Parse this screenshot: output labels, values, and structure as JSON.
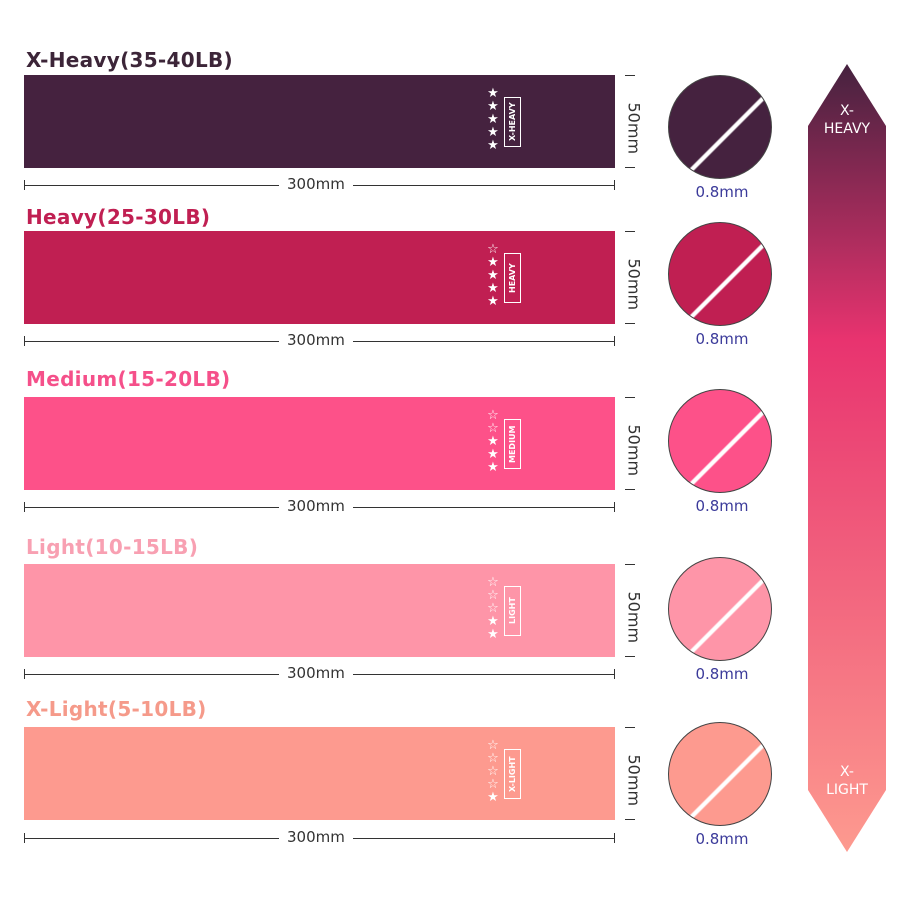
{
  "bands": [
    {
      "label": "X-Heavy(35-40LB)",
      "tag": "X-HEAVY",
      "stars_filled": 5,
      "stars_total": 5,
      "color": "#45223f",
      "label_color": "#3c2538",
      "width": "300mm",
      "height": "50mm",
      "thickness": "0.8mm"
    },
    {
      "label": "Heavy(25-30LB)",
      "tag": "HEAVY",
      "stars_filled": 4,
      "stars_total": 5,
      "color": "#c01f52",
      "label_color": "#c01f52",
      "width": "300mm",
      "height": "50mm",
      "thickness": "0.8mm"
    },
    {
      "label": "Medium(15-20LB)",
      "tag": "MEDIUM",
      "stars_filled": 3,
      "stars_total": 5,
      "color": "#fd5189",
      "label_color": "#f5508a",
      "width": "300mm",
      "height": "50mm",
      "thickness": "0.8mm"
    },
    {
      "label": "Light(10-15LB)",
      "tag": "LIGHT",
      "stars_filled": 2,
      "stars_total": 5,
      "color": "#fe95a8",
      "label_color": "#f8a0b2",
      "width": "300mm",
      "height": "50mm",
      "thickness": "0.8mm"
    },
    {
      "label": "X-Light(5-10LB)",
      "tag": "X-LIGHT",
      "stars_filled": 1,
      "stars_total": 5,
      "color": "#fd9a8f",
      "label_color": "#f59a8a",
      "width": "300mm",
      "height": "50mm",
      "thickness": "0.8mm"
    }
  ],
  "scale": {
    "top_label": "X-\nHEAVY",
    "bottom_label": "X-\nLIGHT",
    "top_color": "#45223f",
    "mid_color": "#e8336f",
    "bottom_color": "#fd9a8f"
  }
}
